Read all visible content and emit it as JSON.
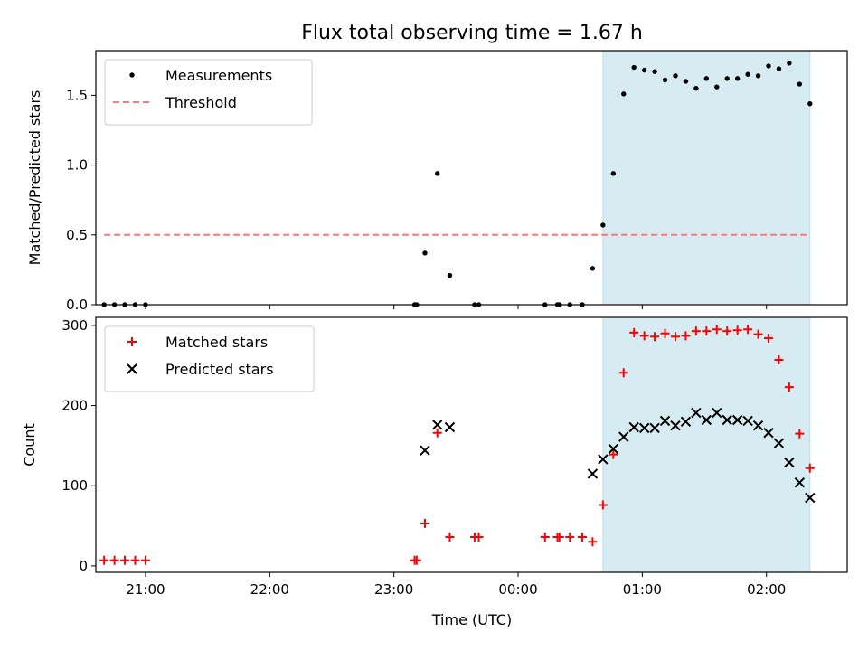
{
  "chart_data": {
    "title": "Flux total observing time = 1.67 h",
    "x_axis": {
      "label": "Time (UTC)",
      "unit": "hours",
      "range": [
        20.6,
        2.65
      ],
      "ticks": [
        "21:00",
        "22:00",
        "23:00",
        "00:00",
        "01:00",
        "02:00"
      ]
    },
    "highlight_window": {
      "start": "00:41",
      "end": "02:21",
      "color": "#add8e6"
    },
    "panels": [
      {
        "type": "scatter",
        "ylabel": "Matched/Predicted stars",
        "ylim": [
          0,
          1.82
        ],
        "yticks": [
          "0.0",
          "0.5",
          "1.0",
          "1.5"
        ],
        "legend_position": "top-left",
        "threshold": {
          "name": "Threshold",
          "value": 0.5,
          "from": "20:40",
          "to": "02:21",
          "color": "#ff7777"
        },
        "series": [
          {
            "name": "Measurements",
            "color": "#000000",
            "points": [
              [
                "20:40",
                0
              ],
              [
                "20:45",
                0
              ],
              [
                "20:50",
                0
              ],
              [
                "20:55",
                0
              ],
              [
                "21:00",
                0
              ],
              [
                "23:10",
                0
              ],
              [
                "23:11",
                0
              ],
              [
                "23:15",
                0.37
              ],
              [
                "23:21",
                0.94
              ],
              [
                "23:27",
                0.21
              ],
              [
                "23:39",
                0
              ],
              [
                "23:41",
                0
              ],
              [
                "00:13",
                0
              ],
              [
                "00:19",
                0
              ],
              [
                "00:20",
                0
              ],
              [
                "00:25",
                0
              ],
              [
                "00:31",
                0
              ],
              [
                "00:36",
                0.26
              ],
              [
                "00:41",
                0.57
              ],
              [
                "00:46",
                0.94
              ],
              [
                "00:51",
                1.51
              ],
              [
                "00:56",
                1.7
              ],
              [
                "01:01",
                1.68
              ],
              [
                "01:06",
                1.67
              ],
              [
                "01:11",
                1.61
              ],
              [
                "01:16",
                1.64
              ],
              [
                "01:21",
                1.6
              ],
              [
                "01:26",
                1.55
              ],
              [
                "01:31",
                1.62
              ],
              [
                "01:36",
                1.56
              ],
              [
                "01:41",
                1.62
              ],
              [
                "01:46",
                1.62
              ],
              [
                "01:51",
                1.65
              ],
              [
                "01:56",
                1.64
              ],
              [
                "02:01",
                1.71
              ],
              [
                "02:06",
                1.69
              ],
              [
                "02:11",
                1.73
              ],
              [
                "02:16",
                1.58
              ],
              [
                "02:21",
                1.44
              ]
            ]
          }
        ]
      },
      {
        "type": "scatter",
        "ylabel": "Count",
        "ylim": [
          -8,
          310
        ],
        "yticks": [
          "0",
          "100",
          "200",
          "300"
        ],
        "legend_position": "top-left",
        "series": [
          {
            "name": "Matched stars",
            "color": "#ff0000",
            "points": [
              [
                "20:40",
                7
              ],
              [
                "20:45",
                7
              ],
              [
                "20:50",
                7
              ],
              [
                "20:55",
                7
              ],
              [
                "21:00",
                7
              ],
              [
                "23:10",
                7
              ],
              [
                "23:11",
                7
              ],
              [
                "23:15",
                53
              ],
              [
                "23:21",
                166
              ],
              [
                "23:27",
                36
              ],
              [
                "23:39",
                36
              ],
              [
                "23:41",
                36
              ],
              [
                "00:13",
                36
              ],
              [
                "00:19",
                36
              ],
              [
                "00:20",
                36
              ],
              [
                "00:25",
                36
              ],
              [
                "00:31",
                36
              ],
              [
                "00:36",
                30
              ],
              [
                "00:41",
                76
              ],
              [
                "00:46",
                139
              ],
              [
                "00:51",
                241
              ],
              [
                "00:56",
                291
              ],
              [
                "01:01",
                287
              ],
              [
                "01:06",
                286
              ],
              [
                "01:11",
                290
              ],
              [
                "01:16",
                286
              ],
              [
                "01:21",
                287
              ],
              [
                "01:26",
                293
              ],
              [
                "01:31",
                293
              ],
              [
                "01:36",
                295
              ],
              [
                "01:41",
                293
              ],
              [
                "01:46",
                294
              ],
              [
                "01:51",
                295
              ],
              [
                "01:56",
                289
              ],
              [
                "02:01",
                284
              ],
              [
                "02:06",
                257
              ],
              [
                "02:11",
                223
              ],
              [
                "02:16",
                165
              ],
              [
                "02:21",
                122
              ]
            ]
          },
          {
            "name": "Predicted stars",
            "color": "#000000",
            "points": [
              [
                "23:15",
                144
              ],
              [
                "23:21",
                176
              ],
              [
                "23:27",
                173
              ],
              [
                "00:36",
                115
              ],
              [
                "00:41",
                133
              ],
              [
                "00:46",
                146
              ],
              [
                "00:51",
                161
              ],
              [
                "00:56",
                173
              ],
              [
                "01:01",
                172
              ],
              [
                "01:06",
                172
              ],
              [
                "01:11",
                181
              ],
              [
                "01:16",
                175
              ],
              [
                "01:21",
                180
              ],
              [
                "01:26",
                191
              ],
              [
                "01:31",
                182
              ],
              [
                "01:36",
                191
              ],
              [
                "01:41",
                182
              ],
              [
                "01:46",
                182
              ],
              [
                "01:51",
                181
              ],
              [
                "01:56",
                175
              ],
              [
                "02:01",
                166
              ],
              [
                "02:06",
                153
              ],
              [
                "02:11",
                129
              ],
              [
                "02:16",
                104
              ],
              [
                "02:21",
                85
              ]
            ]
          }
        ]
      }
    ]
  }
}
